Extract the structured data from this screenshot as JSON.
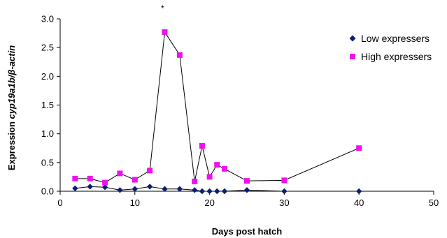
{
  "chart_data": {
    "type": "scatter",
    "title": "",
    "xlabel": "Days post hatch",
    "ylabel": {
      "prefix": "Expression ",
      "gene": "cyp19a1b/β-actin"
    },
    "xlim": [
      0,
      50
    ],
    "ylim": [
      0,
      3.0
    ],
    "x_ticks": [
      "0",
      "10",
      "20",
      "30",
      "40",
      "50"
    ],
    "y_ticks": [
      "0.0",
      "0.5",
      "1.0",
      "1.5",
      "2.0",
      "2.5",
      "3.0"
    ],
    "legend_position": "right",
    "annotations": [
      {
        "text": "*",
        "x": 13.7
      }
    ],
    "series": [
      {
        "name": "Low expressers",
        "marker": "diamond",
        "color": "#0b1f6e",
        "x": [
          2,
          4,
          6,
          8,
          10,
          12,
          14,
          16,
          18,
          19,
          20,
          21,
          22,
          25,
          30,
          40
        ],
        "y": [
          0.05,
          0.08,
          0.07,
          0.02,
          0.04,
          0.08,
          0.04,
          0.04,
          0.02,
          0.0,
          0.0,
          0.0,
          0.0,
          0.02,
          0.0,
          0.0
        ]
      },
      {
        "name": "High expressers",
        "marker": "square",
        "color": "#ee11ee",
        "x": [
          2,
          4,
          6,
          8,
          10,
          12,
          14,
          16,
          18,
          19,
          20,
          21,
          22,
          25,
          30,
          40
        ],
        "y": [
          0.22,
          0.22,
          0.15,
          0.31,
          0.2,
          0.36,
          2.77,
          2.37,
          0.17,
          0.79,
          0.25,
          0.46,
          0.39,
          0.18,
          0.19,
          0.75
        ]
      }
    ]
  }
}
